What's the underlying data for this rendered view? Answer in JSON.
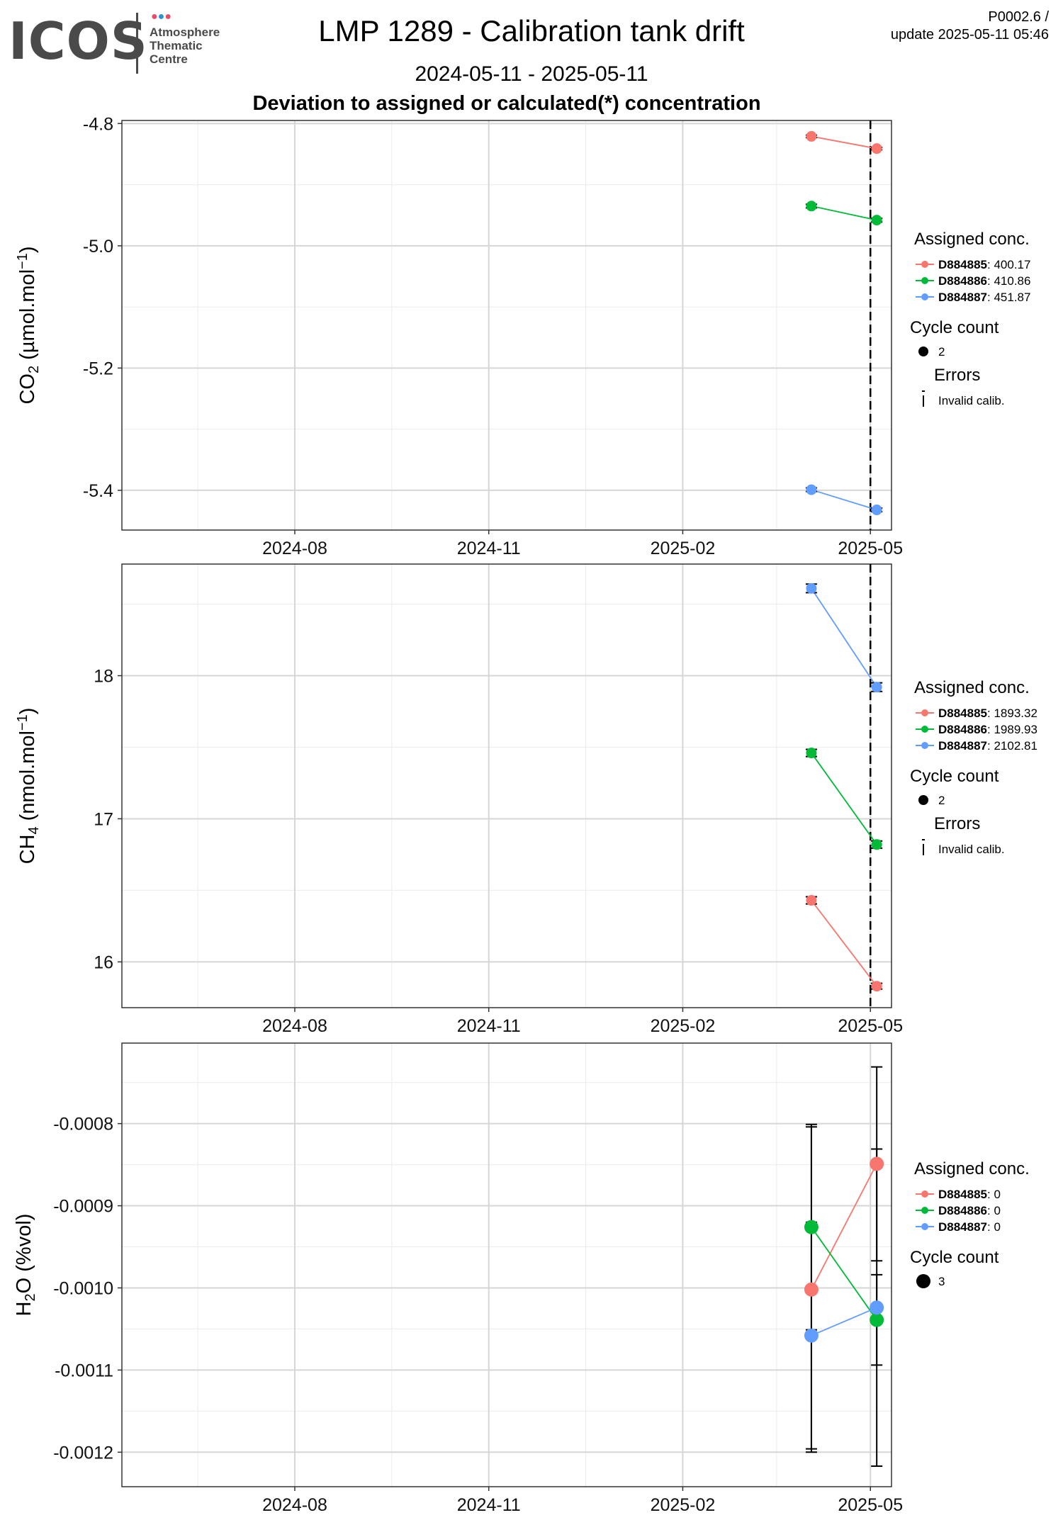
{
  "header": {
    "logo": {
      "text": "ICOS",
      "sub": [
        "Atmosphere",
        "Thematic",
        "Centre"
      ],
      "dot_colors": [
        "#e94b6a",
        "#2e8fd6",
        "#e94b6a"
      ]
    },
    "title": "LMP 1289 - Calibration tank drift",
    "date_range": "2024-05-11 - 2025-05-11",
    "subtitle": "Deviation to assigned or calculated(*) concentration",
    "version": "P0002.6 /",
    "update": "update  2025-05-11 05:46"
  },
  "colors": {
    "D884885": "#f8766d",
    "D884886": "#00ba38",
    "D884887": "#619cff",
    "errorbar": "#000000",
    "vline": "#000000"
  },
  "chart_data": [
    {
      "type": "line",
      "ylabel": "CO2 (µmol.mol-1)",
      "ylabel_main": "CO",
      "ylabel_sub": "2",
      "ylabel_rest": " (µmol.mol",
      "ylabel_sup": "−1",
      "ylabel_end": ")",
      "xlim": [
        "2024-05-11",
        "2025-05-11"
      ],
      "ylim": [
        -5.465,
        -4.795
      ],
      "xticks": [
        "2024-08",
        "2024-11",
        "2025-02",
        "2025-05"
      ],
      "yticks": [
        -4.8,
        -5.0,
        -5.2,
        -5.4
      ],
      "ytick_labels": [
        "-4.8",
        "-5.0",
        "-5.2",
        "-5.4"
      ],
      "vline": "2025-05-01",
      "series": [
        {
          "name": "D884885",
          "value_label": "400.17",
          "x": [
            "2025-04-03",
            "2025-05-04"
          ],
          "y": [
            -4.821,
            -4.841
          ],
          "err": [
            0.002,
            0.002
          ],
          "size": 2
        },
        {
          "name": "D884886",
          "value_label": "410.86",
          "x": [
            "2025-04-03",
            "2025-05-04"
          ],
          "y": [
            -4.935,
            -4.958
          ],
          "err": [
            0.003,
            0.003
          ],
          "size": 2
        },
        {
          "name": "D884887",
          "value_label": "451.87",
          "x": [
            "2025-04-03",
            "2025-05-04"
          ],
          "y": [
            -5.399,
            -5.432
          ],
          "err": [
            0.003,
            0.003
          ],
          "size": 2
        }
      ],
      "legend": {
        "title": "Assigned conc.",
        "cycle_title": "Cycle count",
        "cycle_value": "2",
        "errors_title": "Errors",
        "errors_label": "Invalid calib."
      }
    },
    {
      "type": "line",
      "ylabel": "CH4 (nmol.mol-1)",
      "ylabel_main": "CH",
      "ylabel_sub": "4",
      "ylabel_rest": " (nmol.mol",
      "ylabel_sup": "−1",
      "ylabel_end": ")",
      "xlim": [
        "2024-05-11",
        "2025-05-11"
      ],
      "ylim": [
        15.68,
        18.78
      ],
      "xticks": [
        "2024-08",
        "2024-11",
        "2025-02",
        "2025-05"
      ],
      "yticks": [
        16,
        17,
        18
      ],
      "ytick_labels": [
        "16",
        "17",
        "18"
      ],
      "vline": "2025-05-01",
      "series": [
        {
          "name": "D884885",
          "value_label": "1893.32",
          "x": [
            "2025-04-03",
            "2025-05-04"
          ],
          "y": [
            16.43,
            15.83
          ],
          "err": [
            0.025,
            0.02
          ],
          "size": 2
        },
        {
          "name": "D884886",
          "value_label": "1989.93",
          "x": [
            "2025-04-03",
            "2025-05-04"
          ],
          "y": [
            17.46,
            16.82
          ],
          "err": [
            0.025,
            0.025
          ],
          "size": 2
        },
        {
          "name": "D884887",
          "value_label": "2102.81",
          "x": [
            "2025-04-03",
            "2025-05-04"
          ],
          "y": [
            18.61,
            17.92
          ],
          "err": [
            0.03,
            0.03
          ],
          "size": 2
        }
      ],
      "legend": {
        "title": "Assigned conc.",
        "cycle_title": "Cycle count",
        "cycle_value": "2",
        "errors_title": "Errors",
        "errors_label": "Invalid calib."
      }
    },
    {
      "type": "line",
      "ylabel": "H2O (%vol)",
      "ylabel_main": "H",
      "ylabel_sub": "2",
      "ylabel_rest": "O (%vol)",
      "ylabel_sup": "",
      "ylabel_end": "",
      "xlim": [
        "2024-05-11",
        "2025-05-11"
      ],
      "ylim": [
        -0.001242,
        -0.000702
      ],
      "xticks": [
        "2024-08",
        "2024-11",
        "2025-02",
        "2025-05"
      ],
      "yticks": [
        -0.0008,
        -0.0009,
        -0.001,
        -0.0011,
        -0.0012
      ],
      "ytick_labels": [
        "-0.0008",
        "-0.0009",
        "-0.0010",
        "-0.0011",
        "-0.0012"
      ],
      "vline": null,
      "series": [
        {
          "name": "D884885",
          "value_label": "0",
          "x": [
            "2025-04-03",
            "2025-05-04"
          ],
          "y": [
            -0.001002,
            -0.000849
          ],
          "err": [
            0.000198,
            0.000118
          ],
          "size": 3
        },
        {
          "name": "D884886",
          "value_label": "0",
          "x": [
            "2025-04-03",
            "2025-05-04"
          ],
          "y": [
            -0.000926,
            -0.001039
          ],
          "err": [
            0.000125,
            5.5e-05
          ],
          "size": 3
        },
        {
          "name": "D884887",
          "value_label": "0",
          "x": [
            "2025-04-03",
            "2025-05-04"
          ],
          "y": [
            -0.001058,
            -0.001024
          ],
          "err": [
            0.000138,
            0.000193
          ],
          "size": 3
        }
      ],
      "legend": {
        "title": "Assigned conc.",
        "cycle_title": "Cycle count",
        "cycle_value": "3",
        "errors_title": "",
        "errors_label": ""
      }
    }
  ]
}
